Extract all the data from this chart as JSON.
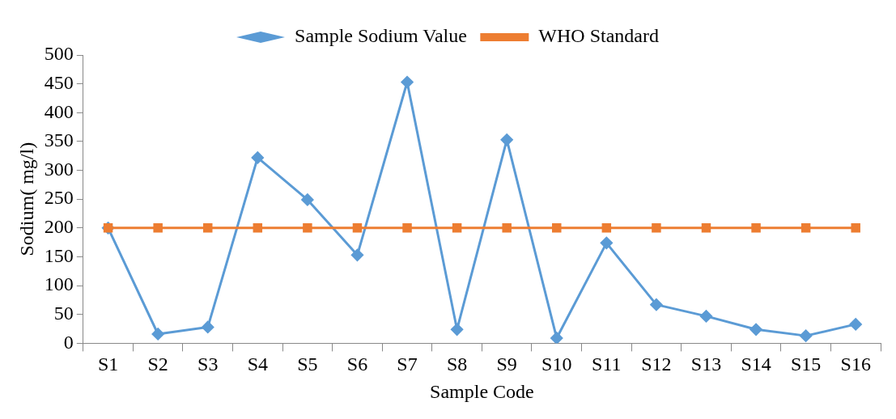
{
  "chart_data": {
    "type": "line",
    "xlabel": "Sample Code",
    "ylabel": "Sodium( mg/l)",
    "categories": [
      "S1",
      "S2",
      "S3",
      "S4",
      "S5",
      "S6",
      "S7",
      "S8",
      "S9",
      "S10",
      "S11",
      "S12",
      "S13",
      "S14",
      "S15",
      "S16"
    ],
    "series": [
      {
        "name": "Sample Sodium Value",
        "color": "#5b9bd5",
        "marker": "diamond",
        "values": [
          200,
          16,
          28,
          322,
          249,
          153,
          453,
          24,
          353,
          9,
          174,
          67,
          47,
          24,
          13,
          33
        ]
      },
      {
        "name": "WHO Standard",
        "color": "#ed7d31",
        "marker": "square",
        "values": [
          200,
          200,
          200,
          200,
          200,
          200,
          200,
          200,
          200,
          200,
          200,
          200,
          200,
          200,
          200,
          200
        ]
      }
    ],
    "ylim": [
      0,
      500
    ],
    "yticks": [
      0,
      50,
      100,
      150,
      200,
      250,
      300,
      350,
      400,
      450,
      500
    ],
    "grid": false,
    "legend": "top",
    "line_style": "solid"
  }
}
